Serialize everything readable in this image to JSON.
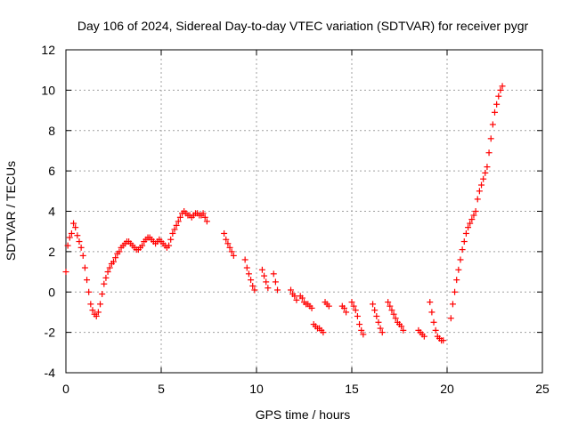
{
  "chart_data": {
    "type": "scatter",
    "title": "Day 106 of 2024, Sidereal Day-to-day VTEC variation (SDTVAR) for receiver pygr",
    "xlabel": "GPS time / hours",
    "ylabel": "SDTVAR / TECUs",
    "xlim": [
      0,
      25
    ],
    "ylim": [
      -4,
      12
    ],
    "xticks": [
      0,
      5,
      10,
      15,
      20,
      25
    ],
    "yticks": [
      -4,
      -2,
      0,
      2,
      4,
      6,
      8,
      10,
      12
    ],
    "grid": true,
    "marker": "+",
    "color": "#ff0000",
    "series": [
      {
        "name": "SDTVAR",
        "x": [
          0.0,
          0.1,
          0.2,
          0.3,
          0.4,
          0.5,
          0.6,
          0.7,
          0.8,
          0.9,
          1.0,
          1.1,
          1.2,
          1.3,
          1.4,
          1.5,
          1.6,
          1.7,
          1.8,
          1.9,
          2.0,
          2.1,
          2.2,
          2.3,
          2.4,
          2.5,
          2.6,
          2.7,
          2.8,
          2.9,
          3.0,
          3.1,
          3.2,
          3.3,
          3.4,
          3.5,
          3.6,
          3.7,
          3.8,
          3.9,
          4.0,
          4.1,
          4.2,
          4.3,
          4.4,
          4.5,
          4.6,
          4.7,
          4.8,
          4.9,
          5.0,
          5.1,
          5.2,
          5.3,
          5.4,
          5.5,
          5.6,
          5.7,
          5.8,
          5.9,
          6.0,
          6.1,
          6.2,
          6.3,
          6.4,
          6.5,
          6.6,
          6.7,
          6.8,
          6.9,
          7.0,
          7.1,
          7.2,
          7.3,
          7.4,
          8.3,
          8.4,
          8.5,
          8.6,
          8.7,
          8.8,
          9.4,
          9.5,
          9.6,
          9.7,
          9.8,
          9.9,
          10.3,
          10.4,
          10.5,
          10.6,
          10.9,
          11.0,
          11.1,
          11.8,
          11.9,
          12.0,
          12.1,
          12.3,
          12.4,
          12.5,
          12.6,
          12.7,
          12.8,
          12.9,
          13.0,
          13.1,
          13.2,
          13.3,
          13.4,
          13.5,
          13.6,
          13.7,
          13.8,
          14.5,
          14.6,
          14.7,
          15.0,
          15.1,
          15.2,
          15.3,
          15.4,
          15.5,
          15.6,
          16.1,
          16.2,
          16.3,
          16.4,
          16.5,
          16.6,
          16.9,
          17.0,
          17.1,
          17.2,
          17.3,
          17.4,
          17.5,
          17.6,
          17.7,
          18.5,
          18.6,
          18.7,
          18.8,
          19.1,
          19.2,
          19.3,
          19.4,
          19.5,
          19.6,
          19.7,
          19.8,
          20.2,
          20.3,
          20.4,
          20.5,
          20.6,
          20.7,
          20.8,
          20.9,
          21.0,
          21.1,
          21.2,
          21.3,
          21.4,
          21.5,
          21.6,
          21.7,
          21.8,
          21.9,
          22.0,
          22.1,
          22.2,
          22.3,
          22.4,
          22.5,
          22.6,
          22.7,
          22.8,
          22.9
        ],
        "y": [
          1.0,
          2.3,
          2.7,
          2.9,
          3.4,
          3.2,
          2.8,
          2.5,
          2.2,
          1.8,
          1.2,
          0.6,
          0.0,
          -0.6,
          -0.9,
          -1.1,
          -1.2,
          -1.0,
          -0.6,
          -0.1,
          0.4,
          0.7,
          1.0,
          1.2,
          1.4,
          1.5,
          1.7,
          1.9,
          2.0,
          2.2,
          2.3,
          2.4,
          2.5,
          2.5,
          2.4,
          2.3,
          2.2,
          2.1,
          2.1,
          2.2,
          2.3,
          2.5,
          2.6,
          2.7,
          2.7,
          2.6,
          2.5,
          2.4,
          2.5,
          2.6,
          2.5,
          2.4,
          2.3,
          2.2,
          2.3,
          2.6,
          2.9,
          3.1,
          3.3,
          3.5,
          3.7,
          3.9,
          4.0,
          3.9,
          3.8,
          3.8,
          3.7,
          3.8,
          3.9,
          3.9,
          3.8,
          3.8,
          3.9,
          3.7,
          3.5,
          2.9,
          2.6,
          2.4,
          2.2,
          2.0,
          1.8,
          1.6,
          1.2,
          0.9,
          0.6,
          0.3,
          0.1,
          1.1,
          0.8,
          0.5,
          0.2,
          0.9,
          0.5,
          0.1,
          0.1,
          -0.1,
          -0.2,
          -0.4,
          -0.2,
          -0.3,
          -0.5,
          -0.6,
          -0.6,
          -0.7,
          -0.8,
          -1.6,
          -1.7,
          -1.8,
          -1.8,
          -1.9,
          -2.0,
          -0.5,
          -0.6,
          -0.7,
          -0.7,
          -0.8,
          -1.0,
          -0.5,
          -0.7,
          -0.9,
          -1.2,
          -1.6,
          -1.9,
          -2.1,
          -0.6,
          -0.9,
          -1.2,
          -1.5,
          -1.8,
          -2.0,
          -0.5,
          -0.7,
          -0.9,
          -1.1,
          -1.3,
          -1.5,
          -1.6,
          -1.7,
          -1.9,
          -1.9,
          -2.0,
          -2.1,
          -2.2,
          -0.5,
          -1.0,
          -1.5,
          -1.9,
          -2.2,
          -2.3,
          -2.4,
          -2.4,
          -1.3,
          -0.6,
          0.0,
          0.6,
          1.1,
          1.6,
          2.1,
          2.5,
          2.9,
          3.2,
          3.4,
          3.6,
          3.8,
          4.0,
          4.6,
          5.0,
          5.3,
          5.6,
          5.9,
          6.2,
          6.9,
          7.6,
          8.3,
          8.9,
          9.3,
          9.7,
          10.0,
          10.2
        ]
      }
    ]
  }
}
